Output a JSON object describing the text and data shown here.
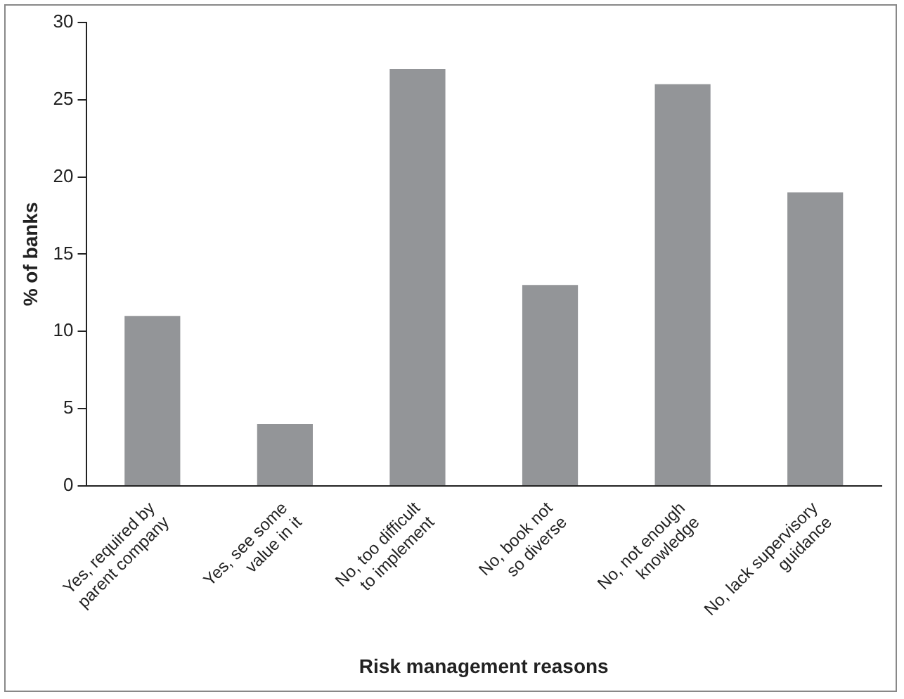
{
  "chart_data": {
    "type": "bar",
    "xlabel": "Risk management reasons",
    "ylabel": "% of banks",
    "categories": [
      "Yes, required by parent company",
      "Yes, see some value in it",
      "No, too difficult to implement",
      "No, book not so diverse",
      "No, not enough knowledge",
      "No, lack supervisory guidance"
    ],
    "values": [
      11,
      4,
      27,
      13,
      26,
      19
    ],
    "color": "#939598",
    "ylim": [
      0,
      30
    ],
    "yticks": [
      0,
      5,
      10,
      15,
      20,
      25,
      30
    ],
    "grid": false,
    "legend": false
  }
}
